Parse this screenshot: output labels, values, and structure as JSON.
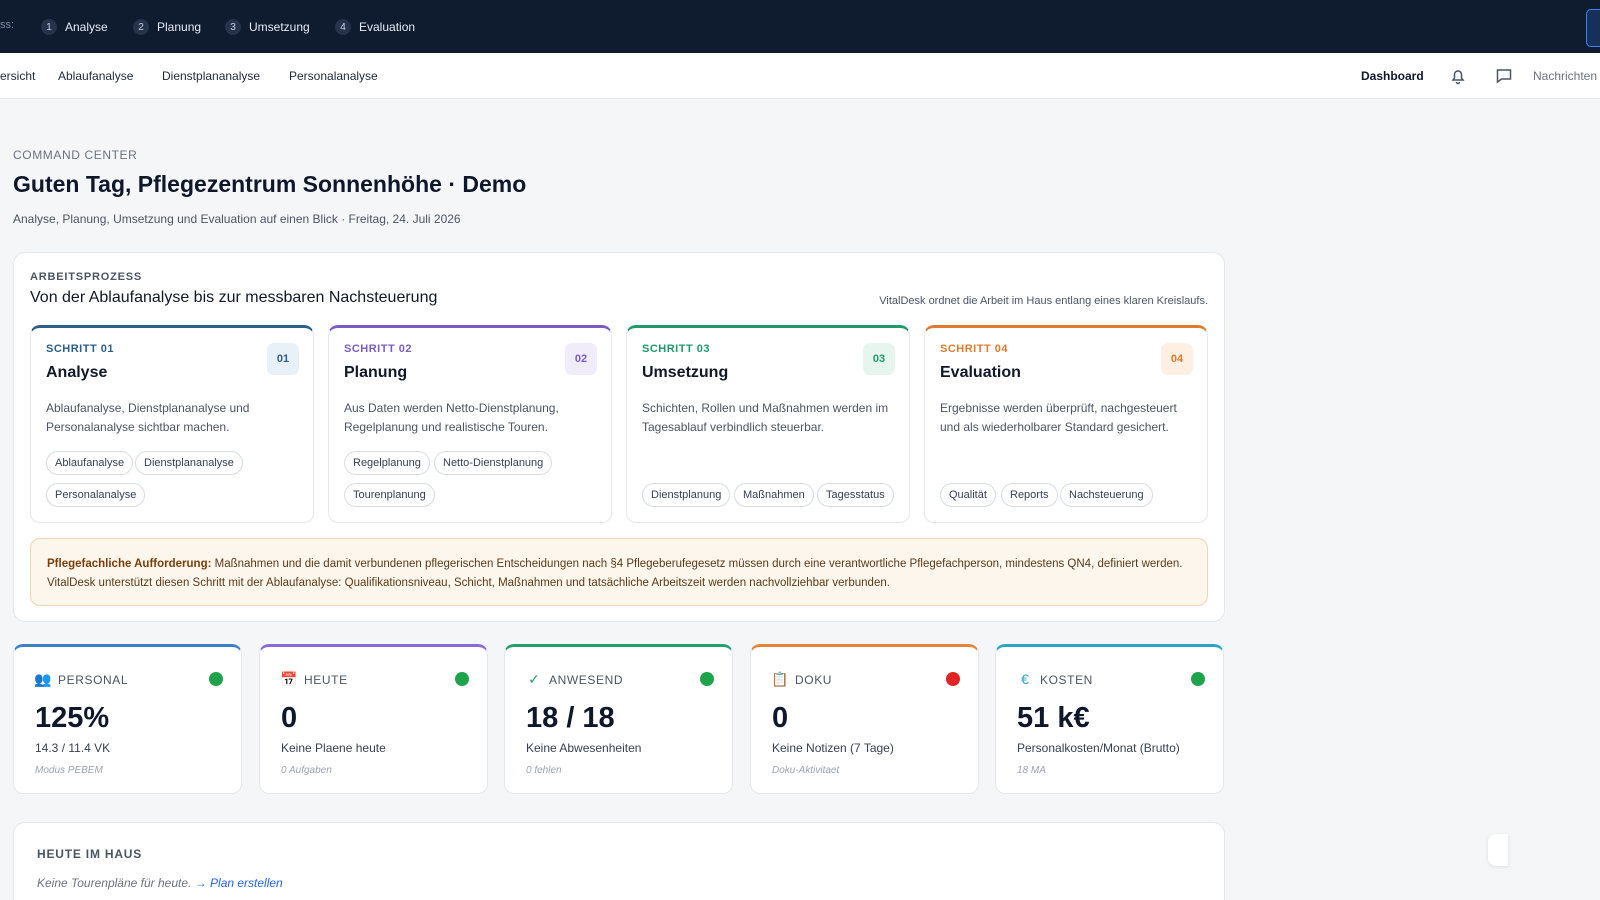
{
  "topbar": {
    "cut_label": "ss:",
    "steps": [
      {
        "num": "1",
        "label": "Analyse"
      },
      {
        "num": "2",
        "label": "Planung"
      },
      {
        "num": "3",
        "label": "Umsetzung"
      },
      {
        "num": "4",
        "label": "Evaluation"
      }
    ]
  },
  "subnav": {
    "links": [
      "ersicht",
      "Ablaufanalyse",
      "Dienstplananalyse",
      "Personalanalyse"
    ],
    "dashboard": "Dashboard",
    "messages": "Nachrichten"
  },
  "header": {
    "eyebrow": "COMMAND CENTER",
    "title": "Guten Tag, Pflegezentrum Sonnenhöhe · Demo",
    "subtitle": "Analyse, Planung, Umsetzung und Evaluation auf einen Blick · Freitag, 24. Juli 2026"
  },
  "process": {
    "eyebrow": "ARBEITSPROZESS",
    "title": "Von der Ablaufanalyse bis zur messbaren Nachsteuerung",
    "note": "VitalDesk ordnet die Arbeit im Haus entlang eines klaren Kreislaufs.",
    "cards": [
      {
        "step": "SCHRITT 01",
        "badge": "01",
        "title": "Analyse",
        "desc": "Ablaufanalyse, Dienstplananalyse und Personalanalyse sichtbar machen.",
        "chips": [
          "Ablaufanalyse",
          "Dienstplananalyse",
          "Personalanalyse"
        ],
        "color": "#2b5f8a",
        "badge_bg": "#e8f0f8"
      },
      {
        "step": "SCHRITT 02",
        "badge": "02",
        "title": "Planung",
        "desc": "Aus Daten werden Netto-Dienstplanung, Regelplanung und realistische Touren.",
        "chips": [
          "Regelplanung",
          "Netto-Dienstplanung",
          "Tourenplanung"
        ],
        "color": "#7c5cc4",
        "badge_bg": "#f0ecfa"
      },
      {
        "step": "SCHRITT 03",
        "badge": "03",
        "title": "Umsetzung",
        "desc": "Schichten, Rollen und Maßnahmen werden im Tagesablauf verbindlich steuerbar.",
        "chips": [
          "Dienstplanung",
          "Maßnahmen",
          "Tagesstatus"
        ],
        "color": "#1f9a6b",
        "badge_bg": "#e6f6ef"
      },
      {
        "step": "SCHRITT 04",
        "badge": "04",
        "title": "Evaluation",
        "desc": "Ergebnisse werden überprüft, nachgesteuert und als wiederholbarer Standard gesichert.",
        "chips": [
          "Qualität",
          "Reports",
          "Nachsteuerung"
        ],
        "color": "#e07a2e",
        "badge_bg": "#fdf0e3"
      }
    ],
    "notice_bold": "Pflegefachliche Aufforderung:",
    "notice_text": " Maßnahmen und die damit verbundenen pflegerischen Entscheidungen nach §4 Pflegeberufegesetz müssen durch eine verantwortliche Pflegefachperson, mindestens QN4, definiert werden. VitalDesk unterstützt diesen Schritt mit der Ablaufanalyse: Qualifikationsniveau, Schicht, Maßnahmen und tatsächliche Arbeitszeit werden nachvollziehbar verbunden."
  },
  "kpis": [
    {
      "icon": "people-icon",
      "glyph": "👥",
      "label": "PERSONAL",
      "value": "125%",
      "sub": "14.3 / 11.4 VK",
      "meta": "Modus PEBEM",
      "status": "#1fa34a",
      "color": "#3b82c4"
    },
    {
      "icon": "calendar-icon",
      "glyph": "📅",
      "label": "HEUTE",
      "value": "0",
      "sub": "Keine Plaene heute",
      "meta": "0 Aufgaben",
      "status": "#1fa34a",
      "color": "#8b6ad6"
    },
    {
      "icon": "check-icon",
      "glyph": "✓",
      "label": "ANWESEND",
      "value": "18 / 18",
      "sub": "Keine Abwesenheiten",
      "meta": "0 fehlen",
      "status": "#1fa34a",
      "color": "#22a06b"
    },
    {
      "icon": "clipboard-icon",
      "glyph": "📋",
      "label": "DOKU",
      "value": "0",
      "sub": "Keine Notizen (7 Tage)",
      "meta": "Doku-Aktivitaet",
      "status": "#e02424",
      "color": "#e8833a"
    },
    {
      "icon": "euro-icon",
      "glyph": "€",
      "label": "KOSTEN",
      "value": "51 k€",
      "sub": "Personalkosten/Monat (Brutto)",
      "meta": "18 MA",
      "status": "#1fa34a",
      "color": "#2aa5c7"
    }
  ],
  "house": {
    "title": "HEUTE IM HAUS",
    "empty": "Keine Tourenpläne für heute. ",
    "link": "→ Plan erstellen"
  }
}
